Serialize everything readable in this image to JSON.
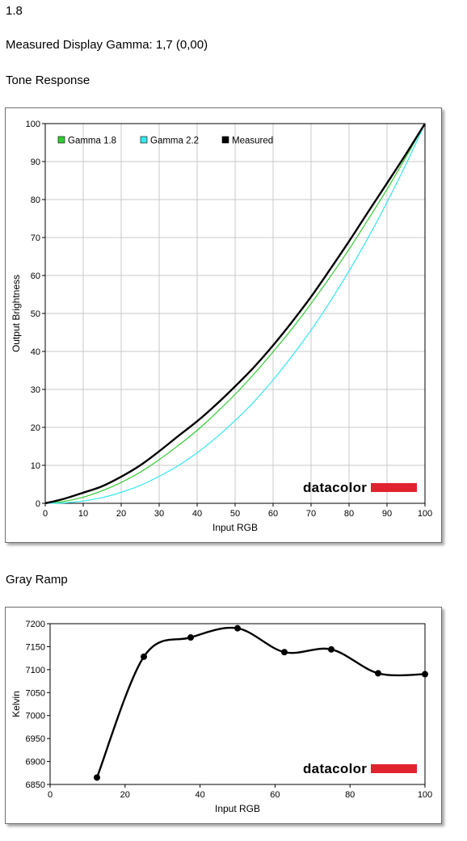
{
  "header": {
    "value": "1.8",
    "gamma_label": "Measured Display Gamma: 1,7 (0,00)"
  },
  "logo_text": "datacolor",
  "colors": {
    "gamma18": "#33cc33",
    "gamma22": "#33e8f0",
    "measured": "#000000",
    "logo_bar": "#e0232e",
    "grid": "#c8c8c8"
  },
  "chart_data": [
    {
      "type": "line",
      "title": "Tone Response",
      "xlabel": "Input RGB",
      "ylabel": "Output Brightness",
      "xlim": [
        0,
        100
      ],
      "ylim": [
        0,
        100
      ],
      "xticks": [
        "0",
        "10",
        "20",
        "30",
        "40",
        "50",
        "60",
        "70",
        "80",
        "90",
        "100"
      ],
      "yticks": [
        "0",
        "10",
        "20",
        "30",
        "40",
        "50",
        "60",
        "70",
        "80",
        "90",
        "100"
      ],
      "grid": true,
      "legend": "top-left",
      "series": [
        {
          "name": "Gamma 1.8",
          "x": [
            0,
            5,
            10,
            15,
            20,
            25,
            30,
            35,
            40,
            45,
            50,
            55,
            60,
            65,
            70,
            75,
            80,
            85,
            90,
            95,
            100
          ],
          "y": [
            0,
            0.5,
            1.6,
            3.3,
            5.5,
            8.2,
            11.5,
            15.2,
            19.2,
            23.8,
            28.7,
            34.1,
            39.9,
            46.0,
            52.6,
            59.6,
            66.9,
            74.7,
            82.7,
            91.2,
            100
          ]
        },
        {
          "name": "Gamma 2.2",
          "x": [
            0,
            5,
            10,
            15,
            20,
            25,
            30,
            35,
            40,
            45,
            50,
            55,
            60,
            65,
            70,
            75,
            80,
            85,
            90,
            95,
            100
          ],
          "y": [
            0,
            0.1,
            0.6,
            1.5,
            2.9,
            4.7,
            7.1,
            9.9,
            13.3,
            17.3,
            21.8,
            26.8,
            32.5,
            38.8,
            45.6,
            53.1,
            61.2,
            69.9,
            79.3,
            89.3,
            100
          ]
        },
        {
          "name": "Measured",
          "x": [
            0,
            5,
            10,
            15,
            20,
            25,
            30,
            35,
            40,
            45,
            50,
            55,
            60,
            65,
            70,
            75,
            80,
            85,
            90,
            95,
            100
          ],
          "y": [
            0,
            1.2,
            2.8,
            4.5,
            7.0,
            10.0,
            13.7,
            17.7,
            21.6,
            26.0,
            30.8,
            35.9,
            41.6,
            47.8,
            54.4,
            61.6,
            69.0,
            76.7,
            84.3,
            92.0,
            100
          ]
        }
      ]
    },
    {
      "type": "line",
      "title": "Gray Ramp",
      "xlabel": "Input RGB",
      "ylabel": "Kelvin",
      "xlim": [
        0,
        100
      ],
      "ylim": [
        6850,
        7200
      ],
      "xticks": [
        "0",
        "20",
        "40",
        "60",
        "80",
        "100"
      ],
      "yticks": [
        "6850",
        "6900",
        "6950",
        "7000",
        "7050",
        "7100",
        "7150",
        "7200"
      ],
      "grid": false,
      "series": [
        {
          "name": "",
          "x": [
            12.5,
            25,
            37.5,
            50,
            62.5,
            75,
            87.5,
            100
          ],
          "y": [
            6865,
            7128,
            7170,
            7190,
            7138,
            7144,
            7092,
            7090
          ]
        }
      ]
    }
  ]
}
